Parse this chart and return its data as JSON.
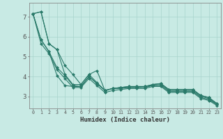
{
  "title": "",
  "xlabel": "Humidex (Indice chaleur)",
  "bg_color": "#c8eae4",
  "grid_color": "#a8d4cc",
  "line_color": "#2a7a6a",
  "marker": "D",
  "marker_size": 2.0,
  "linewidth": 0.8,
  "xlim": [
    -0.5,
    23.5
  ],
  "ylim": [
    2.4,
    7.7
  ],
  "xticks": [
    0,
    1,
    2,
    3,
    4,
    5,
    6,
    7,
    8,
    9,
    10,
    11,
    12,
    13,
    14,
    15,
    16,
    17,
    18,
    19,
    20,
    21,
    22,
    23
  ],
  "yticks": [
    3,
    4,
    5,
    6,
    7
  ],
  "lines": [
    [
      7.15,
      7.25,
      5.65,
      5.35,
      4.55,
      4.1,
      3.6,
      4.1,
      4.3,
      3.3,
      3.4,
      3.45,
      3.5,
      3.5,
      3.5,
      3.6,
      3.65,
      3.35,
      3.35,
      3.35,
      3.35,
      3.05,
      2.95,
      2.65
    ],
    [
      7.15,
      7.25,
      5.65,
      5.35,
      4.1,
      3.6,
      3.6,
      4.1,
      3.7,
      3.3,
      3.4,
      3.45,
      3.5,
      3.5,
      3.5,
      3.6,
      3.65,
      3.35,
      3.35,
      3.35,
      3.35,
      3.05,
      2.95,
      2.65
    ],
    [
      7.15,
      5.85,
      5.25,
      4.45,
      4.05,
      3.55,
      3.5,
      4.0,
      3.65,
      3.3,
      3.4,
      3.45,
      3.45,
      3.45,
      3.5,
      3.55,
      3.6,
      3.3,
      3.3,
      3.3,
      3.3,
      3.0,
      2.9,
      2.6
    ],
    [
      7.15,
      5.85,
      5.25,
      4.05,
      3.55,
      3.5,
      3.5,
      4.0,
      3.65,
      3.3,
      3.4,
      3.4,
      3.45,
      3.45,
      3.45,
      3.55,
      3.55,
      3.25,
      3.25,
      3.25,
      3.25,
      2.95,
      2.85,
      2.6
    ],
    [
      7.15,
      5.65,
      5.15,
      4.35,
      3.9,
      3.45,
      3.45,
      3.9,
      3.55,
      3.2,
      3.3,
      3.35,
      3.4,
      3.4,
      3.4,
      3.5,
      3.5,
      3.2,
      3.2,
      3.2,
      3.2,
      2.9,
      2.8,
      2.55
    ]
  ]
}
